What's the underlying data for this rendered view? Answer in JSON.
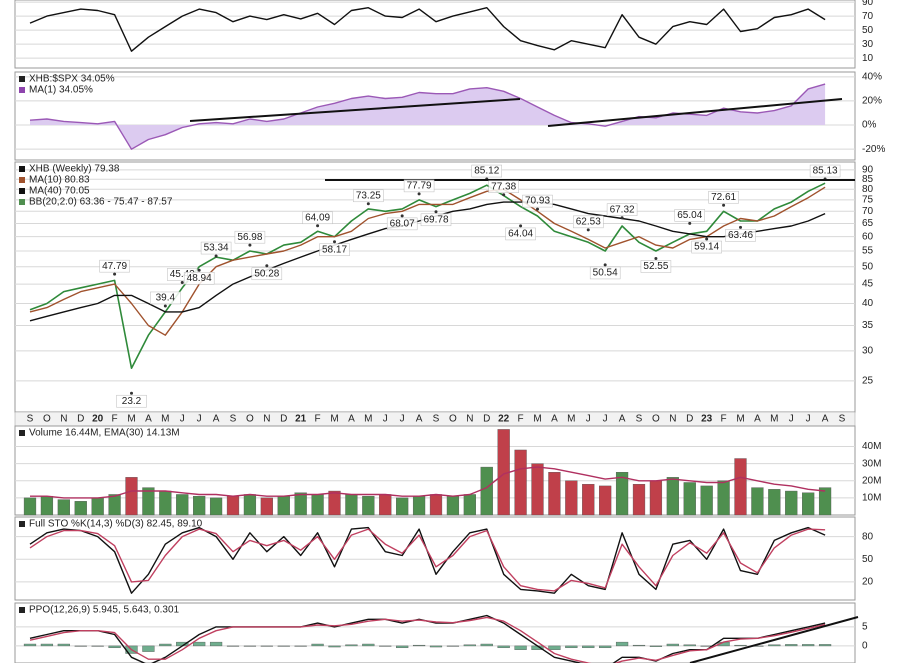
{
  "chart_data": [
    {
      "type": "line",
      "ylim": [
        -4,
        93
      ],
      "yticks": [
        90,
        70,
        50,
        30,
        10
      ],
      "grid": true,
      "series": [
        {
          "color": "#111111",
          "style": "line",
          "values": [
            60,
            70,
            75,
            80,
            78,
            72,
            20,
            40,
            55,
            70,
            80,
            75,
            62,
            70,
            65,
            72,
            66,
            74,
            58,
            78,
            82,
            70,
            68,
            80,
            62,
            70,
            76,
            82,
            55,
            35,
            28,
            22,
            35,
            30,
            25,
            72,
            40,
            30,
            55,
            62,
            58,
            80,
            48,
            52,
            68,
            72,
            80,
            65,
            null
          ]
        }
      ]
    },
    {
      "type": "area",
      "legend": [
        {
          "text": "XHB:$SPX 34.05%",
          "color": "#222222"
        },
        {
          "text": "MA(1) 34.05%",
          "color": "#8e44ad"
        }
      ],
      "ylim": [
        -29,
        44
      ],
      "yticks": [
        {
          "value": 40,
          "label": "40%"
        },
        {
          "value": 20,
          "label": "20%"
        },
        {
          "value": 0,
          "label": "0%"
        },
        {
          "value": -20,
          "label": "-20%"
        }
      ],
      "grid": true,
      "series": [
        {
          "color": "#9b59b6",
          "fill": "#dccbf0",
          "style": "area",
          "values": [
            4,
            5,
            3,
            2,
            1,
            3,
            -20,
            -12,
            -8,
            -2,
            1,
            2,
            1,
            5,
            3,
            5,
            10,
            15,
            18,
            22,
            24,
            22,
            23,
            27,
            26,
            26,
            30,
            31,
            28,
            22,
            15,
            8,
            2,
            1,
            -1,
            3,
            7,
            6,
            10,
            9,
            8,
            14,
            11,
            10,
            12,
            16,
            30,
            34,
            null
          ]
        }
      ]
    },
    {
      "type": "line",
      "legend": [
        {
          "text": "XHB (Weekly) 79.38",
          "color": "#111111"
        },
        {
          "text": "MA(10) 80.83",
          "color": "#a0522d"
        },
        {
          "text": "MA(40) 70.05",
          "color": "#111111"
        },
        {
          "text": "BB(20,2.0) 63.36 - 75.47 - 87.57",
          "color": "#4f8f4f"
        }
      ],
      "log": true,
      "ylim": [
        20.7,
        94.4
      ],
      "yticks": [
        90,
        85,
        80,
        75,
        70,
        65,
        60,
        55,
        50,
        45,
        40,
        35,
        30,
        25
      ],
      "grid": true,
      "categories": [
        "S",
        "O",
        "N",
        "D",
        "20",
        "F",
        "M",
        "A",
        "M",
        "J",
        "J",
        "A",
        "S",
        "O",
        "N",
        "D",
        "21",
        "F",
        "M",
        "A",
        "M",
        "J",
        "J",
        "A",
        "S",
        "O",
        "N",
        "D",
        "22",
        "F",
        "M",
        "A",
        "M",
        "J",
        "J",
        "A",
        "S",
        "O",
        "N",
        "D",
        "23",
        "F",
        "M",
        "A",
        "M",
        "J",
        "J",
        "A",
        "S"
      ],
      "series": [
        {
          "color": "#2f8a3a",
          "style": "line",
          "values": [
            38.5,
            40,
            43,
            44,
            45,
            46,
            27,
            33,
            38,
            44,
            50,
            53,
            52,
            55,
            54,
            57,
            58,
            62,
            60,
            66,
            71,
            70,
            71,
            75,
            72,
            75,
            78,
            82,
            77,
            72,
            68,
            62,
            60,
            58,
            55,
            64,
            58,
            55,
            58,
            61,
            62,
            70,
            66,
            66,
            71,
            74,
            79,
            83,
            null
          ]
        },
        {
          "color": "#a0522d",
          "style": "line",
          "values": [
            38,
            39,
            41,
            43,
            44,
            45,
            40,
            35,
            33,
            38,
            45,
            50,
            52,
            53,
            54,
            55,
            57,
            60,
            60,
            62,
            67,
            69,
            70,
            73,
            73,
            73,
            76,
            79,
            80,
            75,
            70,
            65,
            62,
            59,
            56,
            58,
            60,
            57,
            56,
            59,
            60,
            64,
            67,
            66,
            68,
            72,
            76,
            81,
            null
          ]
        },
        {
          "color": "#111111",
          "style": "line",
          "values": [
            36,
            37,
            38,
            39,
            40,
            42,
            42,
            40,
            38,
            38,
            39,
            42,
            45,
            47,
            49,
            51,
            53,
            55,
            57,
            59,
            61,
            63,
            64,
            66,
            68,
            70,
            71,
            73,
            74,
            74,
            74,
            73,
            71,
            69,
            68,
            67,
            66,
            64,
            62,
            61,
            60,
            60,
            61,
            62,
            63,
            64,
            66,
            69,
            null
          ]
        }
      ],
      "price_labels": [
        null,
        null,
        null,
        null,
        null,
        47.79,
        23.2,
        null,
        39.4,
        45.43,
        48.94,
        53.34,
        null,
        56.98,
        50.28,
        null,
        null,
        64.09,
        58.17,
        null,
        73.25,
        null,
        68.07,
        77.79,
        69.78,
        null,
        null,
        85.12,
        77.38,
        64.04,
        70.93,
        null,
        null,
        62.53,
        50.54,
        67.32,
        null,
        52.55,
        null,
        65.04,
        59.14,
        72.61,
        63.46,
        null,
        null,
        null,
        null,
        85.13,
        null
      ]
    },
    {
      "type": "bar",
      "legend": [
        {
          "text": "Volume 16.44M, EMA(30) 14.13M",
          "color": "#222222"
        }
      ],
      "ylim": [
        0,
        52
      ],
      "yticks": [
        {
          "value": 40,
          "label": "40M"
        },
        {
          "value": 30,
          "label": "30M"
        },
        {
          "value": 20,
          "label": "20M"
        },
        {
          "value": 10,
          "label": "10M"
        }
      ],
      "grid": true,
      "series": [
        {
          "style": "bar",
          "up_color": "#4f8f4f",
          "down_color": "#c0404a",
          "values": [
            10,
            11,
            9,
            8,
            10,
            12,
            22,
            16,
            14,
            12,
            11,
            10,
            11,
            12,
            10,
            11,
            13,
            12,
            14,
            12,
            11,
            12,
            10,
            11,
            12,
            11,
            12,
            28,
            50,
            38,
            30,
            25,
            20,
            18,
            17,
            25,
            18,
            20,
            22,
            19,
            17,
            20,
            33,
            16,
            15,
            14,
            13,
            16,
            null
          ]
        },
        {
          "style": "line",
          "color": "#b03060",
          "values": [
            11,
            11,
            10,
            10,
            10,
            11,
            14,
            14,
            14,
            13,
            12,
            12,
            11,
            12,
            11,
            11,
            12,
            12,
            13,
            12,
            12,
            12,
            11,
            11,
            12,
            11,
            12,
            16,
            24,
            27,
            28,
            27,
            25,
            23,
            21,
            22,
            20,
            20,
            21,
            20,
            19,
            19,
            22,
            20,
            18,
            17,
            15,
            14,
            null
          ]
        }
      ]
    },
    {
      "type": "line",
      "legend": [
        {
          "text": "Full STO %K(14,3) %D(3) 82.45, 89.10",
          "color": "#222222"
        }
      ],
      "ylim": [
        -4,
        106
      ],
      "yticks": [
        80,
        50,
        20
      ],
      "grid": true,
      "series": [
        {
          "style": "line",
          "color": "#111111",
          "values": [
            70,
            85,
            90,
            88,
            80,
            60,
            5,
            30,
            70,
            85,
            92,
            80,
            50,
            85,
            60,
            80,
            55,
            85,
            40,
            90,
            92,
            60,
            55,
            90,
            30,
            60,
            85,
            90,
            30,
            10,
            8,
            5,
            30,
            15,
            10,
            85,
            30,
            10,
            70,
            75,
            50,
            90,
            35,
            30,
            75,
            85,
            92,
            82,
            null
          ]
        },
        {
          "style": "line",
          "color": "#c04060",
          "values": [
            65,
            80,
            88,
            88,
            84,
            68,
            20,
            22,
            55,
            80,
            90,
            84,
            60,
            75,
            68,
            75,
            62,
            80,
            50,
            82,
            90,
            70,
            58,
            82,
            40,
            55,
            80,
            88,
            40,
            15,
            10,
            8,
            22,
            18,
            12,
            70,
            40,
            15,
            55,
            72,
            58,
            85,
            45,
            32,
            65,
            82,
            90,
            89,
            null
          ]
        }
      ]
    },
    {
      "type": "line",
      "legend": [
        {
          "text": "PPO(12,26,9) 5.945, 5.643, 0.301",
          "color": "#222222"
        }
      ],
      "ylim": [
        -4.5,
        11.3
      ],
      "yticks": [
        5,
        0
      ],
      "grid": true,
      "series": [
        {
          "style": "bar",
          "color": "#6fae8e",
          "values": [
            0.5,
            0.5,
            0.5,
            0,
            0,
            -0.5,
            -2,
            -1.5,
            0.5,
            1,
            1,
            1,
            0,
            0,
            0,
            0,
            0,
            0.5,
            -0.3,
            0.3,
            0.5,
            0,
            -0.5,
            0.2,
            -0.3,
            -0.1,
            0.3,
            0.5,
            -0.5,
            -1,
            -1,
            -1,
            -0.5,
            -0.5,
            -0.5,
            1,
            0.2,
            -0.2,
            0.5,
            0.3,
            0,
            1,
            0.2,
            0,
            0.3,
            0.4,
            0.4,
            0.4,
            null
          ]
        },
        {
          "style": "line",
          "color": "#111111",
          "values": [
            2,
            3,
            4,
            4,
            4,
            3,
            -3,
            -5,
            -3,
            0,
            3,
            5,
            5,
            5,
            5,
            5,
            5,
            6,
            5,
            6,
            7,
            7,
            6,
            7,
            6,
            6,
            7,
            8,
            6,
            3,
            0,
            -3,
            -4,
            -5,
            -6,
            -3,
            -3,
            -4,
            -2,
            -1,
            -1,
            2,
            2,
            2,
            3,
            4,
            5,
            6,
            null
          ]
        },
        {
          "style": "line",
          "color": "#c04060",
          "values": [
            1.5,
            2.5,
            3.5,
            4,
            4,
            3.5,
            -1,
            -3.5,
            -3.5,
            -1,
            2,
            4,
            5,
            5,
            5,
            5,
            5,
            5.5,
            5.3,
            5.7,
            6.5,
            7,
            6.5,
            6.8,
            6.3,
            6.1,
            6.7,
            7.5,
            6.5,
            4,
            1,
            -2,
            -3.5,
            -4.5,
            -5.5,
            -4,
            -3.2,
            -3.8,
            -2.5,
            -1.3,
            -1,
            1,
            1.8,
            2,
            2.7,
            3.6,
            4.6,
            5.6,
            null
          ]
        }
      ]
    }
  ]
}
